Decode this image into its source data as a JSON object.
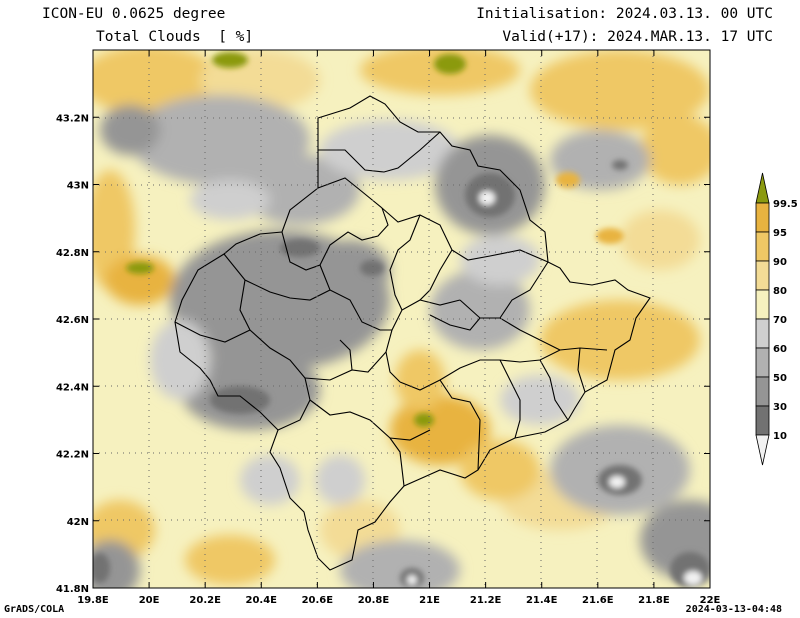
{
  "header": {
    "title_line1": "ICON-EU 0.0625 degree",
    "title_line2": "Total Clouds  [ %]",
    "init_line": "Initialisation: 2024.03.13. 00 UTC",
    "valid_line": "Valid(+17): 2024.MAR.13. 17 UTC"
  },
  "footer": {
    "credit": "GrADS/COLA",
    "timestamp": "2024-03-13-04:48"
  },
  "map": {
    "lon_range": [
      19.8,
      22.0
    ],
    "lat_range": [
      41.8,
      43.4
    ],
    "lon_ticks": [
      "19.8E",
      "20E",
      "20.2E",
      "20.4E",
      "20.6E",
      "20.8E",
      "21E",
      "21.2E",
      "21.4E",
      "21.6E",
      "21.8E",
      "22E"
    ],
    "lat_ticks": [
      "41.8N",
      "42N",
      "42.2N",
      "42.4N",
      "42.6N",
      "42.8N",
      "43N",
      "43.2N"
    ]
  },
  "legend": {
    "levels": [
      "99.5",
      "95",
      "90",
      "80",
      "70",
      "60",
      "50",
      "30",
      "10"
    ],
    "colors": {
      "above_99_5": "#8b9a10",
      "95_99_5": "#e8b340",
      "90_95": "#efc865",
      "80_90": "#f3dc96",
      "70_80": "#f6f1bf",
      "60_70": "#cfcfcf",
      "50_60": "#b1b1b1",
      "30_50": "#959595",
      "10_30": "#727272",
      "below_10": "#f2f2f2"
    }
  }
}
